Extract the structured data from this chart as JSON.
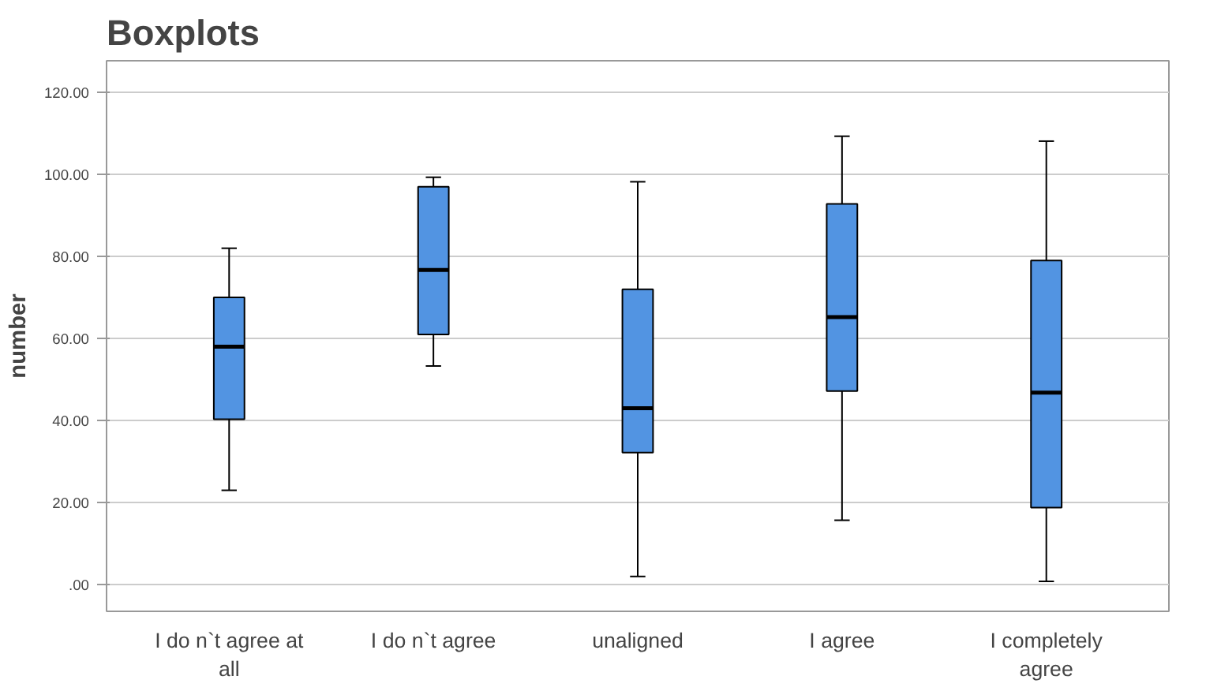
{
  "chart_data": {
    "type": "box",
    "title": "Boxplots",
    "ylabel": "number",
    "categories": [
      "I do n`t agree at all",
      "I do n`t agree",
      "unaligned",
      "I agree",
      "I completely agree"
    ],
    "boxes": [
      {
        "low": 23,
        "q1": 40.3,
        "median": 58,
        "q3": 70,
        "high": 82
      },
      {
        "low": 53.3,
        "q1": 61,
        "median": 76.7,
        "q3": 97,
        "high": 99.3
      },
      {
        "low": 2,
        "q1": 32.2,
        "median": 43,
        "q3": 72,
        "high": 98.2
      },
      {
        "low": 15.7,
        "q1": 47.2,
        "median": 65.2,
        "q3": 92.8,
        "high": 109.3
      },
      {
        "low": 0.8,
        "q1": 18.8,
        "median": 46.8,
        "q3": 79,
        "high": 108.1
      }
    ],
    "color": "#5294e2",
    "ylim": [
      -6.5,
      127.7
    ],
    "yticks": [
      {
        "value": 0,
        "label": ".00"
      },
      {
        "value": 20,
        "label": "20.00"
      },
      {
        "value": 40,
        "label": "40.00"
      },
      {
        "value": 60,
        "label": "60.00"
      },
      {
        "value": 80,
        "label": "80.00"
      },
      {
        "value": 100,
        "label": "100.00"
      },
      {
        "value": 120,
        "label": "120.00"
      }
    ],
    "grid": "y"
  }
}
